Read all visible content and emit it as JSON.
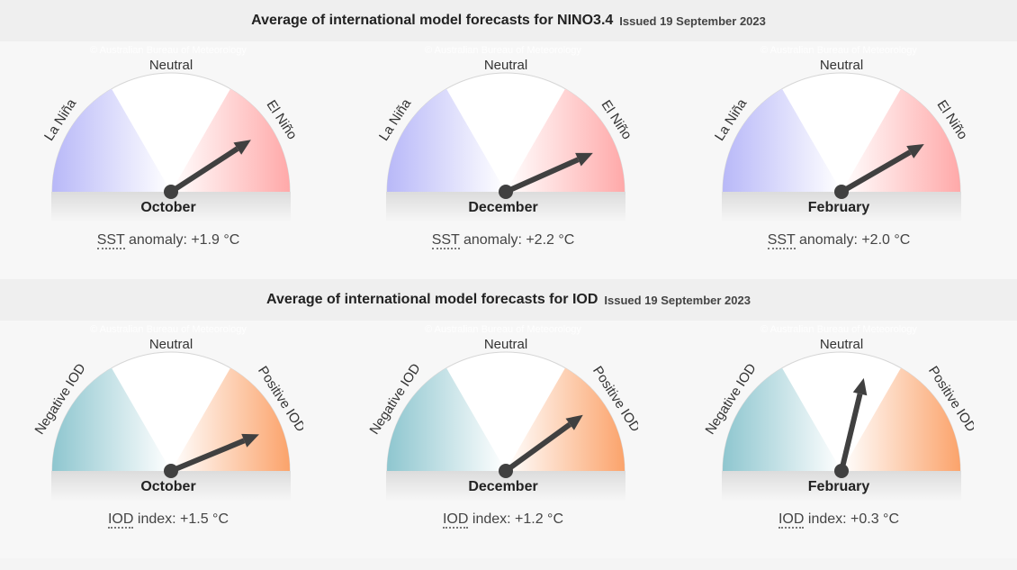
{
  "sections": [
    {
      "title": "Average of international model forecasts for NINO3.4",
      "issued": "Issued 19 September 2023",
      "left_label": "La Niña",
      "center_label": "Neutral",
      "right_label": "El Niño",
      "left_color": "#b8b8f8",
      "right_color": "#ffa9a9",
      "metric_abbr": "SST",
      "metric_text": "anomaly:",
      "watermark": "© Australian Bureau of Meteorology"
    },
    {
      "title": "Average of international model forecasts for IOD",
      "issued": "Issued 19 September 2023",
      "left_label": "Negative IOD",
      "center_label": "Neutral",
      "right_label": "Positive IOD",
      "left_color": "#8ec6cf",
      "right_color": "#fba36b",
      "metric_abbr": "IOD",
      "metric_text": "index:",
      "watermark": "© Australian Bureau of Meteorology"
    }
  ],
  "chart_data": [
    {
      "type": "gauge",
      "title": "Average of international model forecasts for NINO3.4",
      "categories": [
        "October",
        "December",
        "February"
      ],
      "values": [
        1.9,
        2.2,
        2.0
      ],
      "unit": "°C",
      "value_labels": [
        "+1.9 °C",
        "+2.2 °C",
        "+2.0 °C"
      ],
      "scale_labels": [
        "La Niña",
        "Neutral",
        "El Niño"
      ]
    },
    {
      "type": "gauge",
      "title": "Average of international model forecasts for IOD",
      "categories": [
        "October",
        "December",
        "February"
      ],
      "values": [
        1.5,
        1.2,
        0.3
      ],
      "unit": "°C",
      "value_labels": [
        "+1.5 °C",
        "+1.2 °C",
        "+0.3 °C"
      ],
      "scale_labels": [
        "Negative IOD",
        "Neutral",
        "Positive IOD"
      ]
    }
  ]
}
